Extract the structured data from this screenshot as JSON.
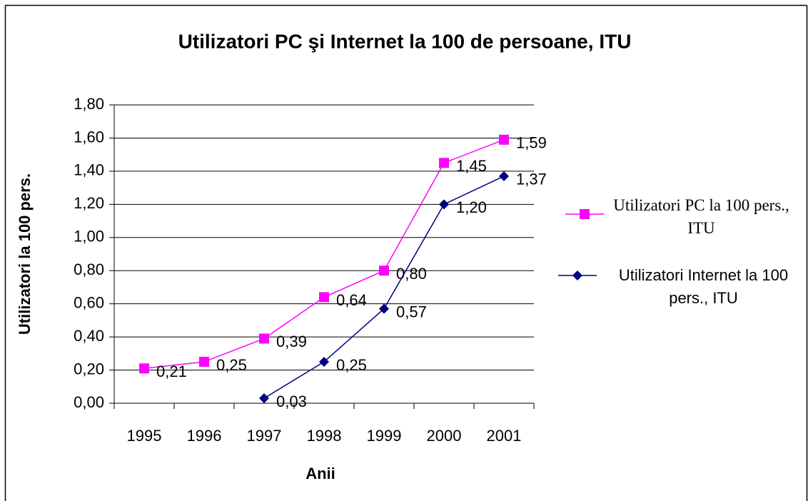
{
  "chart_data": {
    "type": "line",
    "title": "Utilizatori PC şi Internet la 100 de persoane, ITU",
    "x_label": "Anii",
    "y_label": "Utilizatori la 100 pers.",
    "categories": [
      "1995",
      "1996",
      "1997",
      "1998",
      "1999",
      "2000",
      "2001"
    ],
    "series": [
      {
        "name": "Utilizatori PC la 100 pers., ITU",
        "color": "#ff00ff",
        "marker": "square",
        "values": [
          0.21,
          0.25,
          0.39,
          0.64,
          0.8,
          1.45,
          1.59
        ],
        "value_labels": [
          "0,21",
          "0,25",
          "0,39",
          "0,64",
          "0,80",
          "1,45",
          "1,59"
        ]
      },
      {
        "name": "Utilizatori Internet la 100 pers., ITU",
        "color": "#000080",
        "marker": "diamond",
        "values": [
          null,
          null,
          0.03,
          0.25,
          0.57,
          1.2,
          1.37
        ],
        "value_labels": [
          null,
          null,
          "0,03",
          "0,25",
          "0,57",
          "1,20",
          "1,37"
        ]
      }
    ],
    "ylim": [
      0,
      1.8
    ],
    "yticks": [
      {
        "value": 0,
        "label": "0,00"
      },
      {
        "value": 0.2,
        "label": "0,20"
      },
      {
        "value": 0.4,
        "label": "0,40"
      },
      {
        "value": 0.6,
        "label": "0,60"
      },
      {
        "value": 0.8,
        "label": "0,80"
      },
      {
        "value": 1.0,
        "label": "1,00"
      },
      {
        "value": 1.2,
        "label": "1,20"
      },
      {
        "value": 1.4,
        "label": "1,40"
      },
      {
        "value": 1.6,
        "label": "1,60"
      },
      {
        "value": 1.8,
        "label": "1,80"
      }
    ],
    "grid": true
  }
}
